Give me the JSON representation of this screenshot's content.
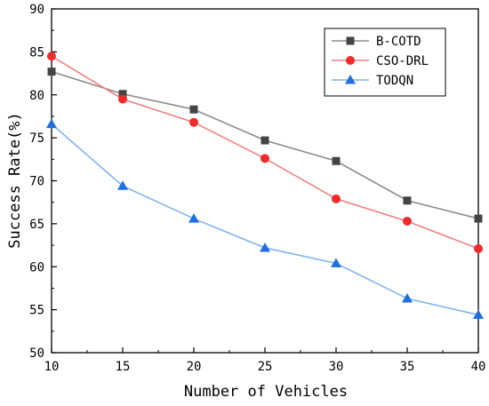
{
  "chart_data": {
    "type": "line",
    "xlabel": "Number of Vehicles",
    "ylabel": "Success Rate(%)",
    "x": [
      10,
      15,
      20,
      25,
      30,
      35,
      40
    ],
    "xlim": [
      10,
      40
    ],
    "ylim": [
      50,
      90
    ],
    "xticks": [
      "10",
      "15",
      "20",
      "25",
      "30",
      "35",
      "40"
    ],
    "yticks": [
      "50",
      "55",
      "60",
      "65",
      "70",
      "75",
      "80",
      "85",
      "90"
    ],
    "grid": false,
    "legend_position": "top-right",
    "series": [
      {
        "name": "B-COTD",
        "marker": "square",
        "color": "#8c8c8c",
        "marker_color": "#444444",
        "values": [
          82.7,
          80.1,
          78.3,
          74.7,
          72.3,
          67.7,
          65.6
        ]
      },
      {
        "name": "CSO-DRL",
        "marker": "circle",
        "color": "#f08080",
        "marker_color": "#ef2b2b",
        "values": [
          84.5,
          79.5,
          76.8,
          72.6,
          67.9,
          65.3,
          62.1
        ]
      },
      {
        "name": "TODQN",
        "marker": "triangle",
        "color": "#7fb3ef",
        "marker_color": "#1f6fe0",
        "values": [
          76.6,
          69.4,
          65.6,
          62.2,
          60.4,
          56.3,
          54.4
        ]
      }
    ]
  }
}
